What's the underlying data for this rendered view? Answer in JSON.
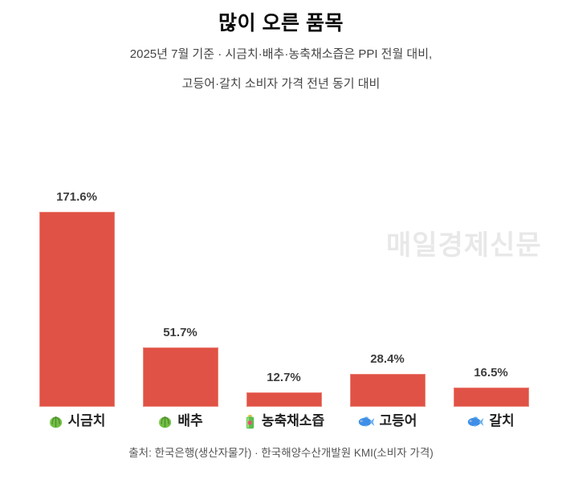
{
  "header": {
    "title": "많이 오른 품목",
    "subtitle_line1": "2025년 7월 기준 · 시금치·배추·농축채소즙은 PPI 전월 대비,",
    "subtitle_line2": "고등어·갈치 소비자 가격 전년 동기 대비"
  },
  "watermark": "매일경제신문",
  "source": "출처: 한국은행(생산자물가) · 한국해양수산개발원 KMI(소비자 가격)",
  "chart_data": {
    "type": "bar",
    "title": "많이 오른 품목",
    "categories": [
      "시금치",
      "배추",
      "농축채소즙",
      "고등어",
      "갈치"
    ],
    "values": [
      171.6,
      51.7,
      12.7,
      28.4,
      16.5
    ],
    "value_labels": [
      "171.6%",
      "51.7%",
      "12.7%",
      "28.4%",
      "16.5%"
    ],
    "unit": "%",
    "icons": [
      "leafy-green-icon",
      "leafy-green-icon",
      "juice-bottle-icon",
      "fish-icon",
      "fish-icon"
    ],
    "bar_color": "#e05245",
    "value_label_color": "#3d3d3d",
    "ylim": [
      0,
      180
    ],
    "xlabel": "",
    "ylabel": "",
    "grid": false,
    "legend": false,
    "axes_visible": false
  }
}
